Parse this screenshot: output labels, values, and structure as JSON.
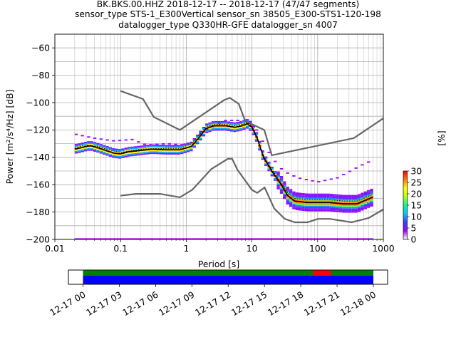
{
  "title_lines": [
    "BK.BKS.00.HHZ   2018-12-17 -- 2018-12-17  (47/47 segments)",
    "sensor_type STS-1_E300Vertical sensor_sn 38505_E300-STS1-120-198",
    "datalogger_type Q330HR-GFE datalogger_sn 4007"
  ],
  "chart_data": {
    "type": "heatmap",
    "xlabel": "Period [s]",
    "ylabel": "Power [m²/s⁴/Hz] [dB]",
    "x_scale": "log",
    "xlim": [
      0.01,
      1000
    ],
    "ylim": [
      -200,
      -50
    ],
    "x_ticks": [
      {
        "value": 0.01,
        "label": "0.01"
      },
      {
        "value": 0.1,
        "label": "0.1"
      },
      {
        "value": 1,
        "label": "1"
      },
      {
        "value": 10,
        "label": "10"
      },
      {
        "value": 100,
        "label": "100"
      },
      {
        "value": 1000,
        "label": "1000"
      }
    ],
    "y_ticks": [
      -60,
      -80,
      -100,
      -120,
      -140,
      -160,
      -180,
      -200
    ],
    "grid": true,
    "colorbar": {
      "label": "[%]",
      "ticks": [
        0,
        5,
        10,
        15,
        20,
        25,
        30
      ],
      "range": [
        0,
        30
      ],
      "colors": [
        "#ffffff",
        "#a000ff",
        "#3c3cff",
        "#00c8ff",
        "#00ff96",
        "#b4ff00",
        "#ffff00",
        "#ff7800",
        "#ff0000"
      ]
    },
    "noise_model_high": [
      [
        0.1,
        -91.5
      ],
      [
        0.22,
        -97.4
      ],
      [
        0.32,
        -110.5
      ],
      [
        0.8,
        -120
      ],
      [
        3.8,
        -98
      ],
      [
        4.6,
        -96.5
      ],
      [
        6.3,
        -101
      ],
      [
        7.9,
        -113.5
      ],
      [
        15.4,
        -120
      ],
      [
        20,
        -138.5
      ],
      [
        354.8,
        -126
      ],
      [
        1000,
        -111.5
      ]
    ],
    "noise_model_low": [
      [
        0.1,
        -168
      ],
      [
        0.17,
        -166.7
      ],
      [
        0.4,
        -166.7
      ],
      [
        0.8,
        -169.2
      ],
      [
        1.24,
        -163.7
      ],
      [
        2.4,
        -148.6
      ],
      [
        4.3,
        -141.1
      ],
      [
        5,
        -141.1
      ],
      [
        6,
        -149
      ],
      [
        10,
        -163.8
      ],
      [
        12,
        -166
      ],
      [
        15.6,
        -162.1
      ],
      [
        21.9,
        -177.5
      ],
      [
        31.6,
        -185
      ],
      [
        45,
        -187.5
      ],
      [
        70,
        -187.5
      ],
      [
        101,
        -185
      ],
      [
        154,
        -185
      ],
      [
        328,
        -187.5
      ],
      [
        600,
        -184.4
      ],
      [
        1000,
        -178
      ]
    ],
    "mode_curve": [
      [
        0.02,
        -134
      ],
      [
        0.025,
        -133
      ],
      [
        0.03,
        -132
      ],
      [
        0.035,
        -131.5
      ],
      [
        0.045,
        -133
      ],
      [
        0.06,
        -135
      ],
      [
        0.08,
        -137
      ],
      [
        0.1,
        -137.5
      ],
      [
        0.13,
        -136
      ],
      [
        0.2,
        -135
      ],
      [
        0.3,
        -134
      ],
      [
        0.5,
        -134.5
      ],
      [
        0.8,
        -134.5
      ],
      [
        1.2,
        -132
      ],
      [
        1.6,
        -125
      ],
      [
        2,
        -119
      ],
      [
        2.6,
        -117
      ],
      [
        4,
        -117
      ],
      [
        5.5,
        -118
      ],
      [
        7,
        -117
      ],
      [
        8.5,
        -115.5
      ],
      [
        10,
        -118
      ],
      [
        12,
        -126
      ],
      [
        15,
        -140
      ],
      [
        20,
        -150
      ],
      [
        28,
        -160
      ],
      [
        35,
        -168
      ],
      [
        45,
        -172
      ],
      [
        70,
        -173
      ],
      [
        100,
        -173
      ],
      [
        150,
        -173
      ],
      [
        250,
        -174
      ],
      [
        400,
        -174
      ],
      [
        500,
        -172
      ],
      [
        700,
        -169
      ]
    ],
    "mean_curve": [
      [
        0.02,
        -133
      ],
      [
        0.03,
        -131
      ],
      [
        0.045,
        -132
      ],
      [
        0.06,
        -134
      ],
      [
        0.1,
        -136.5
      ],
      [
        0.2,
        -134
      ],
      [
        0.5,
        -133.5
      ],
      [
        0.8,
        -133.5
      ],
      [
        1.2,
        -130
      ],
      [
        1.6,
        -123
      ],
      [
        2,
        -118
      ],
      [
        2.6,
        -116
      ],
      [
        4,
        -116
      ],
      [
        5.5,
        -117
      ],
      [
        7,
        -116
      ],
      [
        8.5,
        -114.5
      ],
      [
        10,
        -117
      ],
      [
        12,
        -125
      ],
      [
        15,
        -139
      ],
      [
        20,
        -149
      ],
      [
        28,
        -159
      ],
      [
        35,
        -166
      ],
      [
        45,
        -170
      ],
      [
        70,
        -171
      ],
      [
        100,
        -171
      ],
      [
        150,
        -171
      ],
      [
        250,
        -172
      ],
      [
        400,
        -172
      ],
      [
        500,
        -170
      ],
      [
        700,
        -167
      ]
    ],
    "outlier_band": [
      [
        0.02,
        -123
      ],
      [
        0.04,
        -126
      ],
      [
        0.08,
        -128
      ],
      [
        0.15,
        -127
      ],
      [
        0.25,
        -131
      ],
      [
        0.5,
        -130
      ],
      [
        1,
        -131
      ],
      [
        2,
        -120
      ],
      [
        4,
        -113
      ],
      [
        7,
        -113
      ],
      [
        10,
        -114
      ],
      [
        20,
        -140
      ],
      [
        30,
        -150
      ],
      [
        50,
        -155
      ],
      [
        100,
        -158
      ],
      [
        200,
        -155
      ],
      [
        500,
        -145
      ],
      [
        700,
        -142
      ]
    ],
    "availability": {
      "x_ticks": [
        "12-17 00",
        "12-17 03",
        "12-17 06",
        "12-17 09",
        "12-17 12",
        "12-17 15",
        "12-17 18",
        "12-17 21",
        "12-18 00"
      ],
      "start_hour": 0,
      "end_hour": 24,
      "data_hours": [
        0,
        24
      ],
      "gap_hours": [
        [
          19,
          20.5
        ]
      ],
      "colors": {
        "data": "#0000ff",
        "coverage": "#008000",
        "gap": "#ff0000"
      }
    }
  }
}
